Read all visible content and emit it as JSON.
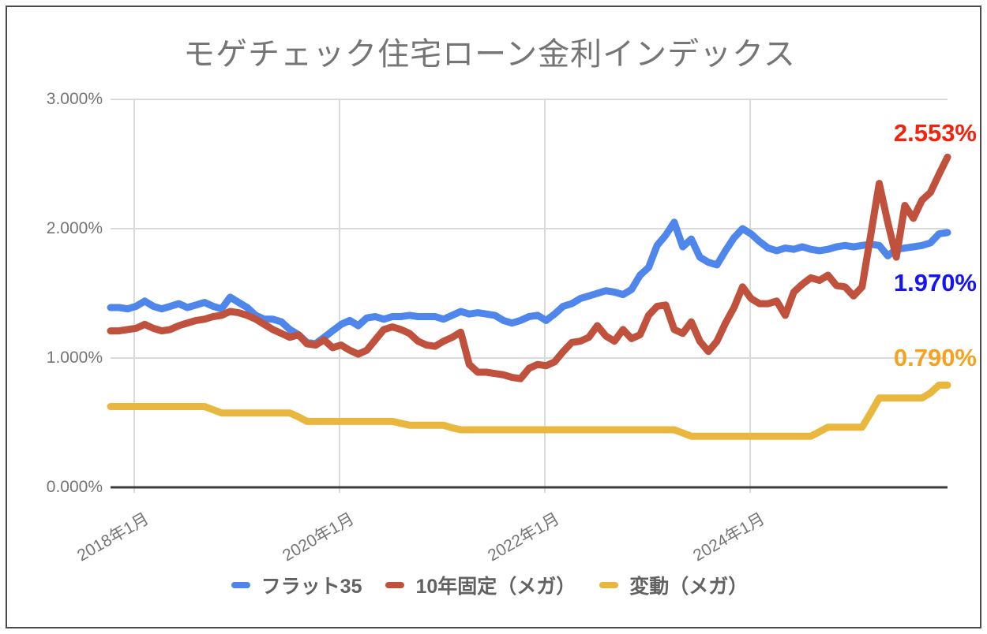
{
  "title": "モゲチェック住宅ローン金利インデックス",
  "end_labels": {
    "fixed10": {
      "text": "2.553%",
      "color": "#f2220d"
    },
    "flat35": {
      "text": "1.970%",
      "color": "#1414f5"
    },
    "variable": {
      "text": "0.790%",
      "color": "#f6a21f"
    }
  },
  "legend": {
    "items": [
      {
        "label": "フラット35",
        "color": "#4f86ec"
      },
      {
        "label": "10年固定（メガ）",
        "color": "#c0513d"
      },
      {
        "label": "変動（メガ）",
        "color": "#eab73e"
      }
    ]
  },
  "chart_data": {
    "type": "line",
    "title": "モゲチェック住宅ローン金利インデックス",
    "x_range": {
      "start": "2017-10",
      "end": "2025-12",
      "step": "1 month",
      "n_points": 99
    },
    "ylim": [
      0,
      3
    ],
    "grid": true,
    "legend_position": "bottom",
    "y_ticks": [
      {
        "label": "0.000%",
        "value": 0
      },
      {
        "label": "1.000%",
        "value": 1
      },
      {
        "label": "2.000%",
        "value": 2
      },
      {
        "label": "3.000%",
        "value": 3
      }
    ],
    "x_ticks": [
      {
        "label": "2018年1月",
        "position": 0.0283
      },
      {
        "label": "2020年1月",
        "position": 0.2736
      },
      {
        "label": "2022年1月",
        "position": 0.5189
      },
      {
        "label": "2024年1月",
        "position": 0.7642
      }
    ],
    "series": [
      {
        "name": "フラット35",
        "color": "#4f86ec",
        "end_value": 1.97,
        "end_label": "1.970%",
        "values": [
          1.39,
          1.39,
          1.38,
          1.4,
          1.44,
          1.4,
          1.38,
          1.4,
          1.42,
          1.39,
          1.41,
          1.43,
          1.4,
          1.38,
          1.47,
          1.43,
          1.39,
          1.33,
          1.3,
          1.3,
          1.28,
          1.22,
          1.18,
          1.12,
          1.11,
          1.16,
          1.21,
          1.26,
          1.29,
          1.25,
          1.31,
          1.32,
          1.3,
          1.32,
          1.32,
          1.33,
          1.32,
          1.32,
          1.32,
          1.3,
          1.33,
          1.36,
          1.34,
          1.35,
          1.34,
          1.33,
          1.29,
          1.27,
          1.29,
          1.32,
          1.33,
          1.29,
          1.34,
          1.4,
          1.42,
          1.46,
          1.48,
          1.5,
          1.52,
          1.51,
          1.49,
          1.53,
          1.64,
          1.7,
          1.87,
          1.95,
          2.05,
          1.86,
          1.92,
          1.78,
          1.74,
          1.72,
          1.83,
          1.93,
          2.0,
          1.96,
          1.9,
          1.85,
          1.83,
          1.85,
          1.84,
          1.86,
          1.84,
          1.83,
          1.84,
          1.86,
          1.87,
          1.86,
          1.87,
          1.88,
          1.87,
          1.79,
          1.84,
          1.85,
          1.86,
          1.87,
          1.89,
          1.96,
          1.97
        ]
      },
      {
        "name": "10年固定（メガ）",
        "color": "#c0513d",
        "end_value": 2.553,
        "end_label": "2.553%",
        "values": [
          1.21,
          1.21,
          1.22,
          1.23,
          1.26,
          1.23,
          1.21,
          1.22,
          1.25,
          1.27,
          1.29,
          1.3,
          1.32,
          1.33,
          1.36,
          1.35,
          1.33,
          1.3,
          1.26,
          1.22,
          1.19,
          1.16,
          1.18,
          1.11,
          1.1,
          1.14,
          1.08,
          1.1,
          1.06,
          1.03,
          1.06,
          1.14,
          1.22,
          1.24,
          1.22,
          1.19,
          1.13,
          1.1,
          1.09,
          1.13,
          1.16,
          1.2,
          0.95,
          0.89,
          0.89,
          0.88,
          0.87,
          0.85,
          0.84,
          0.92,
          0.95,
          0.94,
          0.97,
          1.05,
          1.12,
          1.13,
          1.16,
          1.25,
          1.17,
          1.13,
          1.22,
          1.15,
          1.18,
          1.33,
          1.4,
          1.41,
          1.22,
          1.19,
          1.28,
          1.13,
          1.05,
          1.13,
          1.27,
          1.39,
          1.55,
          1.46,
          1.42,
          1.42,
          1.44,
          1.33,
          1.51,
          1.57,
          1.62,
          1.6,
          1.64,
          1.56,
          1.55,
          1.48,
          1.55,
          1.95,
          2.35,
          2.05,
          1.78,
          2.18,
          2.08,
          2.22,
          2.28,
          2.42,
          2.553
        ]
      },
      {
        "name": "変動（メガ）",
        "color": "#eab73e",
        "end_value": 0.79,
        "end_label": "0.790%",
        "values": [
          0.625,
          0.625,
          0.625,
          0.625,
          0.625,
          0.625,
          0.625,
          0.625,
          0.625,
          0.625,
          0.625,
          0.625,
          0.6,
          0.575,
          0.575,
          0.575,
          0.575,
          0.575,
          0.575,
          0.575,
          0.575,
          0.575,
          0.545,
          0.51,
          0.51,
          0.51,
          0.51,
          0.51,
          0.51,
          0.51,
          0.51,
          0.51,
          0.51,
          0.51,
          0.495,
          0.48,
          0.48,
          0.48,
          0.48,
          0.48,
          0.46,
          0.445,
          0.445,
          0.445,
          0.445,
          0.445,
          0.445,
          0.445,
          0.445,
          0.445,
          0.445,
          0.445,
          0.445,
          0.445,
          0.445,
          0.445,
          0.445,
          0.445,
          0.445,
          0.445,
          0.445,
          0.445,
          0.445,
          0.445,
          0.445,
          0.445,
          0.445,
          0.42,
          0.395,
          0.395,
          0.395,
          0.395,
          0.395,
          0.395,
          0.395,
          0.395,
          0.395,
          0.395,
          0.395,
          0.395,
          0.395,
          0.395,
          0.395,
          0.43,
          0.465,
          0.465,
          0.465,
          0.465,
          0.465,
          0.575,
          0.69,
          0.69,
          0.69,
          0.69,
          0.69,
          0.69,
          0.73,
          0.79,
          0.79
        ]
      }
    ],
    "colors": {
      "grid": "#dadada",
      "axis": "#3c3c3c",
      "title_text": "#757575",
      "tick_text": "#757575",
      "legend_text": "#616161"
    }
  }
}
